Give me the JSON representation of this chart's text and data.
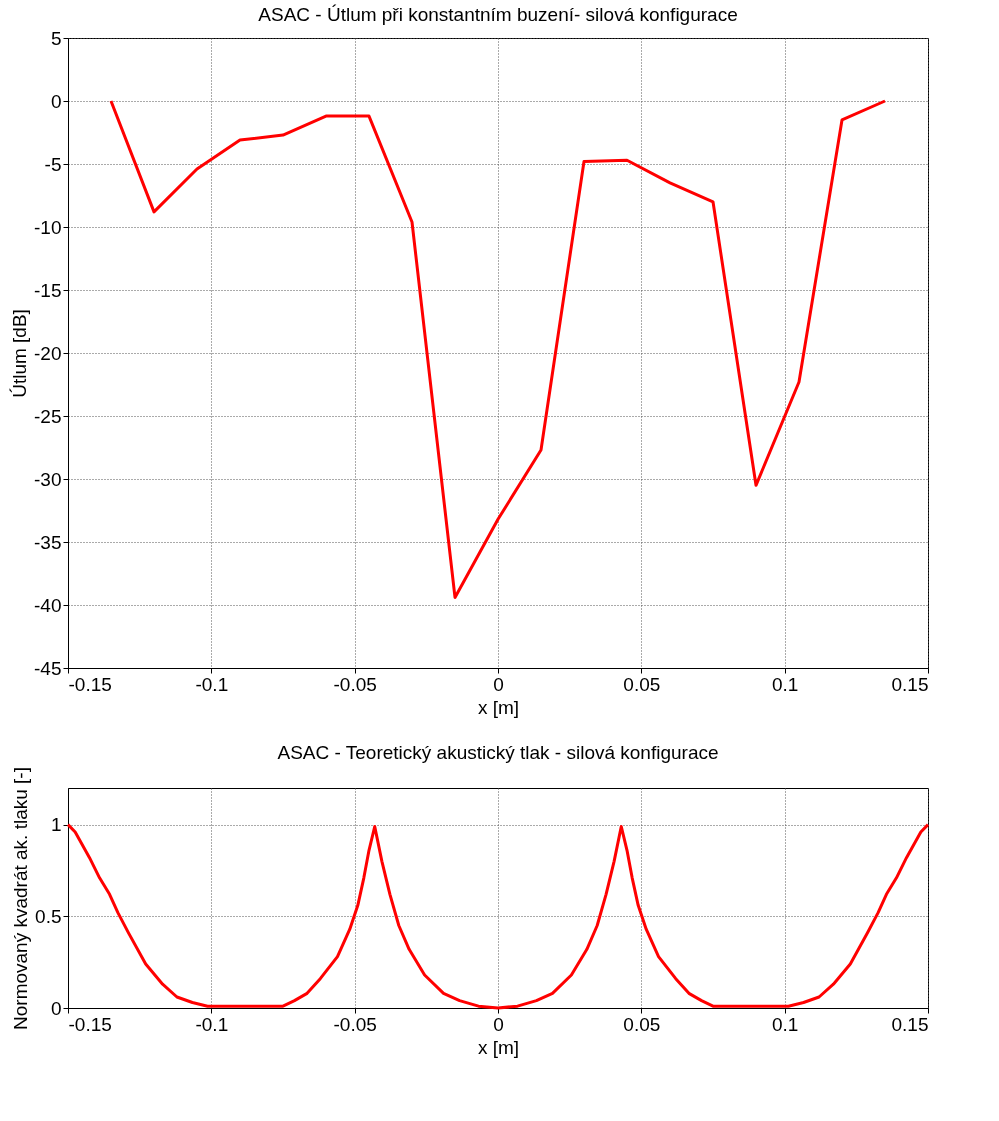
{
  "chart_data": [
    {
      "type": "line",
      "title": "ASAC - Útlum při konstantním buzení- silová konfigurace",
      "xlabel": "x [m]",
      "ylabel": "Útlum [dB]",
      "xlim": [
        -0.15,
        0.15
      ],
      "xticks": [
        -0.15,
        -0.1,
        -0.05,
        0,
        0.05,
        0.1,
        0.15
      ],
      "ylim": [
        -45,
        5
      ],
      "yticks": [
        -45,
        -40,
        -35,
        -30,
        -25,
        -20,
        -15,
        -10,
        -5,
        0,
        5
      ],
      "grid": true,
      "line_style": "solid",
      "series": [
        {
          "color": "#ff0000",
          "x": [
            -0.135,
            -0.12,
            -0.105,
            -0.09,
            -0.075,
            -0.06,
            -0.045,
            -0.03,
            -0.015,
            0,
            0.015,
            0.03,
            0.045,
            0.06,
            0.075,
            0.09,
            0.105,
            0.12,
            0.135
          ],
          "values": [
            0,
            -8.8,
            -5.4,
            -3.1,
            -2.7,
            -1.2,
            -1.2,
            -9.6,
            -39.4,
            -33.2,
            -27.7,
            -4.8,
            -4.7,
            -6.5,
            -8,
            -30.5,
            -22.3,
            -1.5,
            0
          ]
        }
      ]
    },
    {
      "type": "line",
      "title": "ASAC - Teoretický akustický tlak - silová konfigurace",
      "xlabel": "x [m]",
      "ylabel": "Normovaný kvadrát ak. tlaku [-]",
      "xlim": [
        -0.15,
        0.15
      ],
      "xticks": [
        -0.15,
        -0.1,
        -0.05,
        0,
        0.05,
        0.1,
        0.15
      ],
      "ylim": [
        0,
        1.2
      ],
      "yticks": [
        0,
        0.5,
        1
      ],
      "grid": true,
      "line_style": "solid",
      "series": [
        {
          "color": "#ff0000",
          "x": [
            -0.15,
            -0.1475,
            -0.1425,
            -0.139,
            -0.1355,
            -0.1326,
            -0.1289,
            -0.1229,
            -0.117,
            -0.112,
            -0.1066,
            -0.1013,
            -0.075,
            -0.071,
            -0.0666,
            -0.062,
            -0.056,
            -0.0517,
            -0.0489,
            -0.0468,
            -0.045,
            -0.043,
            -0.0405,
            -0.0377,
            -0.0346,
            -0.031,
            -0.0256,
            -0.019,
            -0.0134,
            -0.0068,
            0,
            0.0068,
            0.0134,
            0.019,
            0.0256,
            0.031,
            0.0346,
            0.0377,
            0.0405,
            0.043,
            0.045,
            0.0468,
            0.0489,
            0.0517,
            0.056,
            0.062,
            0.0666,
            0.071,
            0.075,
            0.1013,
            0.1066,
            0.112,
            0.117,
            0.1229,
            0.1289,
            0.1326,
            0.1355,
            0.139,
            0.1425,
            0.1475,
            0.15
          ],
          "values": [
            1,
            0.96,
            0.82,
            0.71,
            0.62,
            0.52,
            0.41,
            0.24,
            0.13,
            0.06,
            0.03,
            0.01,
            0.01,
            0.04,
            0.08,
            0.16,
            0.28,
            0.43,
            0.56,
            0.71,
            0.86,
            0.99,
            0.8,
            0.62,
            0.45,
            0.32,
            0.18,
            0.08,
            0.04,
            0.01,
            0,
            0.01,
            0.04,
            0.08,
            0.18,
            0.32,
            0.45,
            0.62,
            0.8,
            0.99,
            0.86,
            0.71,
            0.56,
            0.43,
            0.28,
            0.16,
            0.08,
            0.04,
            0.01,
            0.01,
            0.03,
            0.06,
            0.13,
            0.24,
            0.41,
            0.52,
            0.62,
            0.71,
            0.82,
            0.96,
            1
          ]
        }
      ]
    }
  ]
}
